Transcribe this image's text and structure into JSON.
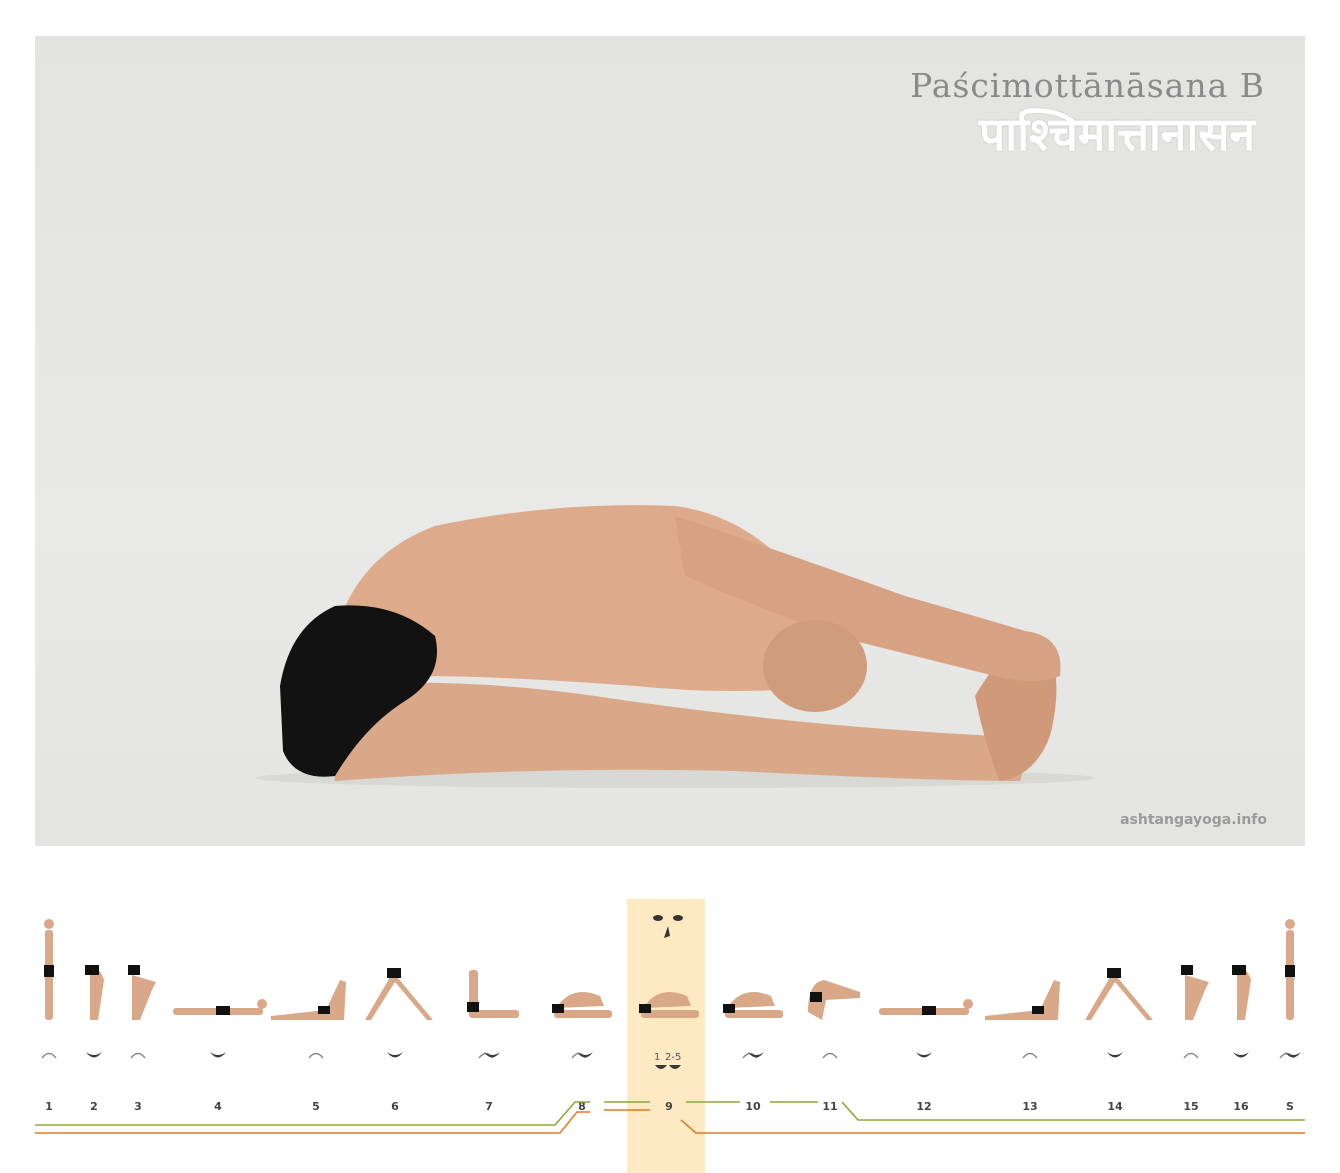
{
  "asana": {
    "title_latin": "Paścimottānāsana B",
    "title_devanagari": "पाश्चिमात्तानासन",
    "site": "ashtangayoga.info"
  },
  "vinyasa": {
    "current_step": "9",
    "steps": [
      {
        "label": "1",
        "breath": "inhale"
      },
      {
        "label": "2",
        "breath": "exhale"
      },
      {
        "label": "3",
        "breath": "inhale"
      },
      {
        "label": "4",
        "breath": "exhale"
      },
      {
        "label": "5",
        "breath": "inhale"
      },
      {
        "label": "6",
        "breath": "exhale"
      },
      {
        "label": "7",
        "breath": "inhale-exhale"
      },
      {
        "label": "8",
        "breath": "inhale-exhale"
      },
      {
        "label": "9",
        "breath": "exhale-hold"
      },
      {
        "label": "10",
        "breath": "inhale-exhale"
      },
      {
        "label": "11",
        "breath": "inhale"
      },
      {
        "label": "12",
        "breath": "exhale"
      },
      {
        "label": "13",
        "breath": "inhale"
      },
      {
        "label": "14",
        "breath": "exhale"
      },
      {
        "label": "15",
        "breath": "inhale"
      },
      {
        "label": "16",
        "breath": "exhale"
      },
      {
        "label": "S",
        "breath": "inhale-exhale"
      }
    ],
    "step9_breath_labels": [
      "1",
      "2-5"
    ],
    "colors": {
      "highlight": "#fde9c2",
      "green_line": "#8aa83a",
      "orange_line": "#e07a1e",
      "breath_icon": "#3a3a3a",
      "skin": "#d8a888",
      "shorts": "#111111"
    }
  }
}
